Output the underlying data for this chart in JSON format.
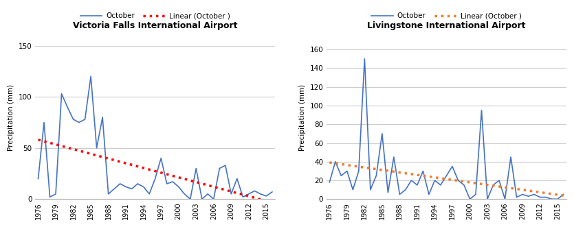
{
  "years": [
    1976,
    1977,
    1978,
    1979,
    1980,
    1981,
    1982,
    1983,
    1984,
    1985,
    1986,
    1987,
    1988,
    1989,
    1990,
    1991,
    1992,
    1993,
    1994,
    1995,
    1996,
    1997,
    1998,
    1999,
    2000,
    2001,
    2002,
    2003,
    2004,
    2005,
    2006,
    2007,
    2008,
    2009,
    2010,
    2011,
    2012,
    2013,
    2014,
    2015,
    2016
  ],
  "vf_data": [
    20,
    75,
    2,
    5,
    103,
    90,
    78,
    75,
    78,
    120,
    50,
    80,
    5,
    10,
    15,
    12,
    10,
    15,
    12,
    5,
    20,
    40,
    15,
    17,
    12,
    5,
    0,
    30,
    0,
    5,
    0,
    30,
    33,
    5,
    20,
    2,
    5,
    8,
    5,
    3,
    7
  ],
  "liv_data": [
    18,
    40,
    25,
    30,
    10,
    30,
    150,
    10,
    25,
    70,
    7,
    45,
    5,
    10,
    20,
    15,
    30,
    5,
    20,
    15,
    25,
    35,
    20,
    15,
    0,
    5,
    95,
    0,
    15,
    20,
    0,
    45,
    2,
    5,
    3,
    5,
    2,
    2,
    0,
    0,
    5
  ],
  "title_vf": "Victoria Falls International Airport",
  "title_liv": "Livingstone International Airport",
  "ylabel": "Precipitation (mm)",
  "line_color": "#4472C4",
  "trend_color_vf": "#FF0000",
  "trend_color_liv": "#ED7D31",
  "legend_label_oct": "October",
  "legend_label_trend": "Linear (October )",
  "ylim_vf": [
    0,
    160
  ],
  "ylim_liv": [
    0,
    175
  ],
  "yticks_vf": [
    0,
    50,
    100,
    150
  ],
  "yticks_liv": [
    0,
    20,
    40,
    60,
    80,
    100,
    120,
    140,
    160
  ],
  "xtick_years": [
    1976,
    1979,
    1982,
    1985,
    1988,
    1991,
    1994,
    1997,
    2000,
    2003,
    2006,
    2009,
    2012,
    2015
  ],
  "title_fontsize": 9,
  "tick_fontsize": 7.5,
  "ylabel_fontsize": 7.5
}
